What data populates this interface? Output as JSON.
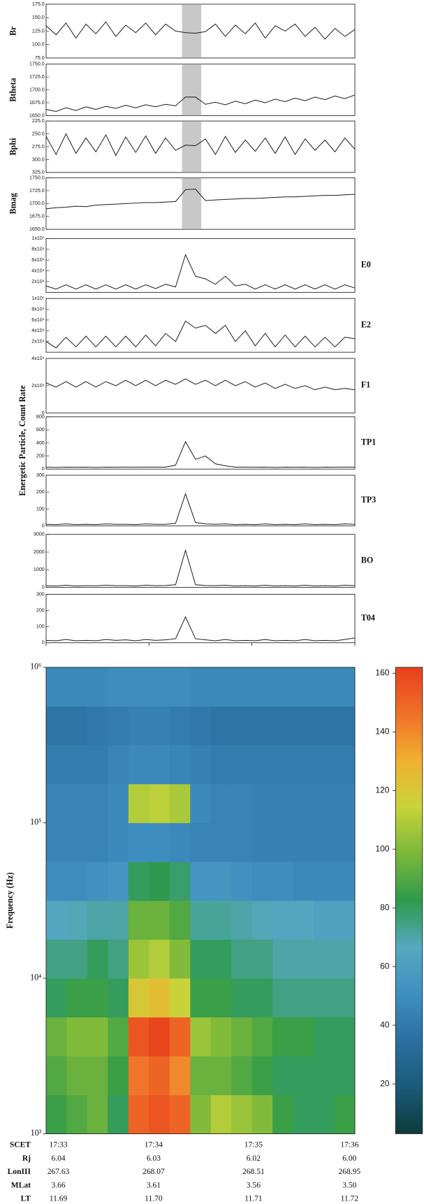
{
  "chart_data": [
    {
      "type": "line",
      "name": "Br",
      "color": "#1a1a1a",
      "ylim": [
        75,
        175
      ],
      "yticks": [
        {
          "value": 75,
          "label": "75.0"
        },
        {
          "value": 100,
          "label": "100.0"
        },
        {
          "value": 125,
          "label": "125.0"
        },
        {
          "value": 150,
          "label": "150.0"
        },
        {
          "value": 175,
          "label": "175.0"
        }
      ],
      "values": [
        135,
        118,
        140,
        112,
        138,
        120,
        142,
        115,
        136,
        122,
        140,
        118,
        138,
        125,
        122,
        121,
        124,
        138,
        115,
        136,
        120,
        140,
        112,
        135,
        125,
        138,
        115,
        132,
        110,
        130,
        115,
        128
      ]
    },
    {
      "type": "line",
      "name": "Btheta",
      "color": "#1a1a1a",
      "ylim": [
        1650,
        1750
      ],
      "yticks": [
        {
          "value": 1650,
          "label": "1650.0"
        },
        {
          "value": 1675,
          "label": "1675.0"
        },
        {
          "value": 1700,
          "label": "1700.0"
        },
        {
          "value": 1725,
          "label": "1725.0"
        },
        {
          "value": 1750,
          "label": "1750.0"
        }
      ],
      "values": [
        1662,
        1658,
        1665,
        1660,
        1667,
        1662,
        1668,
        1664,
        1670,
        1665,
        1671,
        1667,
        1672,
        1669,
        1686,
        1686,
        1672,
        1676,
        1671,
        1678,
        1673,
        1680,
        1675,
        1682,
        1677,
        1684,
        1679,
        1686,
        1681,
        1688,
        1683,
        1690
      ]
    },
    {
      "type": "line",
      "name": "Bphi",
      "color": "#1a1a1a",
      "ylim": [
        325,
        225
      ],
      "yticks": [
        {
          "value": 225,
          "label": "225.0"
        },
        {
          "value": 250,
          "label": "250.0"
        },
        {
          "value": 275,
          "label": "275.0"
        },
        {
          "value": 300,
          "label": "300.0"
        },
        {
          "value": 325,
          "label": "325.0"
        }
      ],
      "values": [
        255,
        290,
        250,
        288,
        258,
        285,
        252,
        292,
        256,
        286,
        254,
        288,
        258,
        282,
        272,
        273,
        260,
        290,
        255,
        286,
        262,
        284,
        258,
        288,
        256,
        290,
        260,
        282,
        262,
        285,
        258,
        280
      ]
    },
    {
      "type": "line",
      "name": "Bmag",
      "color": "#1a1a1a",
      "ylim": [
        1650,
        1750
      ],
      "yticks": [
        {
          "value": 1650,
          "label": "1650.0"
        },
        {
          "value": 1675,
          "label": "1675.0"
        },
        {
          "value": 1700,
          "label": "1700.0"
        },
        {
          "value": 1725,
          "label": "1725.0"
        },
        {
          "value": 1750,
          "label": "1750.0"
        }
      ],
      "values": [
        1690,
        1692,
        1693,
        1695,
        1694,
        1697,
        1698,
        1699,
        1700,
        1701,
        1702,
        1702,
        1703,
        1704,
        1727,
        1728,
        1706,
        1707,
        1708,
        1709,
        1710,
        1710,
        1711,
        1712,
        1713,
        1713,
        1714,
        1715,
        1716,
        1716,
        1717,
        1718
      ]
    },
    {
      "type": "line",
      "name": "E0",
      "color": "#1a1a1a",
      "ylim": [
        0,
        100000
      ],
      "yticks": [
        {
          "value": 20000,
          "label": "2x10⁴"
        },
        {
          "value": 40000,
          "label": "4x10⁴"
        },
        {
          "value": 60000,
          "label": "6x10⁴"
        },
        {
          "value": 80000,
          "label": "8x10⁴"
        },
        {
          "value": 100000,
          "label": "1x10⁵"
        }
      ],
      "values": [
        12000,
        6000,
        14000,
        6000,
        14000,
        6000,
        14000,
        6000,
        14000,
        6000,
        14000,
        7000,
        15000,
        10000,
        70000,
        30000,
        25000,
        15000,
        30000,
        12000,
        15000,
        6000,
        14000,
        6000,
        14000,
        6000,
        14000,
        6000,
        14000,
        6000,
        14000,
        8000
      ]
    },
    {
      "type": "line",
      "name": "E2",
      "color": "#1a1a1a",
      "ylim": [
        0,
        100000
      ],
      "yticks": [
        {
          "value": 20000,
          "label": "2x10⁴"
        },
        {
          "value": 40000,
          "label": "4x10⁴"
        },
        {
          "value": 60000,
          "label": "6x10⁴"
        },
        {
          "value": 80000,
          "label": "8x10⁴"
        },
        {
          "value": 100000,
          "label": "1x10⁵"
        }
      ],
      "values": [
        20000,
        8000,
        28000,
        10000,
        30000,
        10000,
        30000,
        10000,
        30000,
        10000,
        32000,
        12000,
        35000,
        20000,
        58000,
        45000,
        50000,
        35000,
        50000,
        20000,
        40000,
        12000,
        35000,
        10000,
        32000,
        10000,
        30000,
        10000,
        28000,
        10000,
        28000,
        25000
      ]
    },
    {
      "type": "line",
      "name": "F1",
      "color": "#1a1a1a",
      "ylim": [
        0,
        40000
      ],
      "yticks": [
        0,
        {
          "value": 20000,
          "label": "2x10⁴"
        },
        {
          "value": 40000,
          "label": "4x10⁴"
        }
      ],
      "values": [
        22000,
        19000,
        23000,
        19000,
        23000,
        19000,
        23000,
        20000,
        24000,
        20000,
        24000,
        20000,
        24000,
        21000,
        25000,
        21000,
        24000,
        20000,
        24000,
        20000,
        23000,
        19000,
        22000,
        18000,
        21000,
        18000,
        20000,
        17000,
        19000,
        17000,
        18000,
        17000
      ]
    },
    {
      "type": "line",
      "name": "TP1",
      "color": "#1a1a1a",
      "ylim": [
        0,
        800
      ],
      "yticks": [
        0,
        200,
        400,
        600,
        800
      ],
      "values": [
        30,
        25,
        30,
        28,
        30,
        25,
        30,
        28,
        30,
        28,
        30,
        30,
        30,
        60,
        420,
        150,
        200,
        80,
        50,
        30,
        30,
        28,
        30,
        25,
        30,
        28,
        30,
        25,
        30,
        28,
        30,
        30
      ]
    },
    {
      "type": "line",
      "name": "TP3",
      "color": "#1a1a1a",
      "ylim": [
        0,
        300
      ],
      "yticks": [
        0,
        100,
        200,
        300
      ],
      "values": [
        10,
        8,
        12,
        8,
        10,
        8,
        12,
        10,
        10,
        8,
        12,
        10,
        10,
        15,
        190,
        20,
        12,
        10,
        12,
        8,
        10,
        8,
        12,
        8,
        10,
        8,
        12,
        8,
        10,
        8,
        12,
        10
      ]
    },
    {
      "type": "line",
      "name": "BO",
      "color": "#1a1a1a",
      "ylim": [
        0,
        3000
      ],
      "yticks": [
        0,
        1000,
        2000,
        3000
      ],
      "values": [
        100,
        80,
        120,
        80,
        100,
        90,
        120,
        100,
        100,
        80,
        120,
        100,
        110,
        150,
        2100,
        150,
        110,
        100,
        120,
        80,
        100,
        80,
        120,
        80,
        100,
        80,
        120,
        80,
        100,
        80,
        120,
        100
      ]
    },
    {
      "type": "line",
      "name": "T04",
      "color": "#1a1a1a",
      "ylim": [
        0,
        300
      ],
      "yticks": [
        0,
        100,
        200,
        300
      ],
      "values": [
        15,
        12,
        20,
        12,
        15,
        12,
        20,
        15,
        18,
        12,
        20,
        15,
        18,
        25,
        160,
        25,
        18,
        12,
        20,
        12,
        15,
        12,
        20,
        12,
        15,
        12,
        20,
        12,
        15,
        12,
        20,
        30
      ]
    },
    {
      "type": "heatmap",
      "ylabel": "Frequency (Hz)",
      "log_y": true,
      "ylim": [
        1000,
        1000000
      ],
      "yticks": [
        {
          "value": 1000,
          "label": "10³"
        },
        {
          "value": 10000,
          "label": "10⁴"
        },
        {
          "value": 100000,
          "label": "10⁵"
        },
        {
          "value": 1000000,
          "label": "10⁶"
        }
      ],
      "colorbar": {
        "lim": [
          3,
          162
        ],
        "ticks": [
          20,
          40,
          60,
          80,
          100,
          120,
          140,
          160
        ]
      },
      "colormap": [
        "#0d3b3b",
        "#1a5a7a",
        "#2a6fa0",
        "#3e8fc0",
        "#56a8c0",
        "#2e9a4a",
        "#7ab83a",
        "#c8d43a",
        "#f0b030",
        "#f07028",
        "#e8401c"
      ],
      "values": [
        [
          85,
          90,
          95,
          80,
          150,
          155,
          150,
          100,
          110,
          105,
          100,
          85,
          80,
          80,
          85
        ],
        [
          90,
          95,
          95,
          85,
          145,
          150,
          140,
          95,
          95,
          90,
          85,
          80,
          80,
          80,
          80
        ],
        [
          95,
          100,
          100,
          90,
          155,
          160,
          150,
          105,
          100,
          95,
          90,
          85,
          85,
          80,
          80
        ],
        [
          80,
          85,
          85,
          80,
          120,
          125,
          115,
          85,
          85,
          80,
          80,
          75,
          75,
          75,
          75
        ],
        [
          75,
          75,
          80,
          75,
          105,
          110,
          100,
          80,
          80,
          75,
          75,
          70,
          70,
          70,
          70
        ],
        [
          65,
          68,
          70,
          70,
          95,
          95,
          90,
          72,
          72,
          70,
          68,
          65,
          65,
          62,
          62
        ],
        [
          50,
          50,
          52,
          55,
          80,
          82,
          78,
          55,
          55,
          52,
          50,
          50,
          48,
          48,
          48
        ],
        [
          45,
          45,
          45,
          48,
          50,
          50,
          48,
          45,
          45,
          45,
          44,
          44,
          44,
          44,
          44
        ],
        [
          45,
          45,
          45,
          48,
          110,
          112,
          108,
          48,
          45,
          45,
          44,
          44,
          44,
          44,
          44
        ],
        [
          42,
          42,
          42,
          45,
          48,
          48,
          46,
          44,
          42,
          42,
          42,
          42,
          42,
          42,
          42
        ],
        [
          38,
          38,
          40,
          42,
          44,
          44,
          42,
          40,
          38,
          38,
          38,
          38,
          38,
          38,
          38
        ],
        [
          48,
          48,
          48,
          50,
          50,
          50,
          50,
          48,
          48,
          48,
          48,
          48,
          48,
          48,
          48
        ]
      ]
    }
  ],
  "particle_axis_label": "Energetic Particle, Count Rate",
  "table": {
    "rows": [
      [
        "SCET",
        "17:33",
        "17:34",
        "17:35",
        "17:36"
      ],
      [
        "Rj",
        "6.04",
        "6.03",
        "6.02",
        "6.00"
      ],
      [
        "LonIII",
        "267.63",
        "268.07",
        "268.51",
        "268.95"
      ],
      [
        "MLat",
        "3.66",
        "3.61",
        "3.56",
        "3.50"
      ],
      [
        "LT",
        "11.69",
        "11.70",
        "11.71",
        "11.72"
      ]
    ]
  }
}
